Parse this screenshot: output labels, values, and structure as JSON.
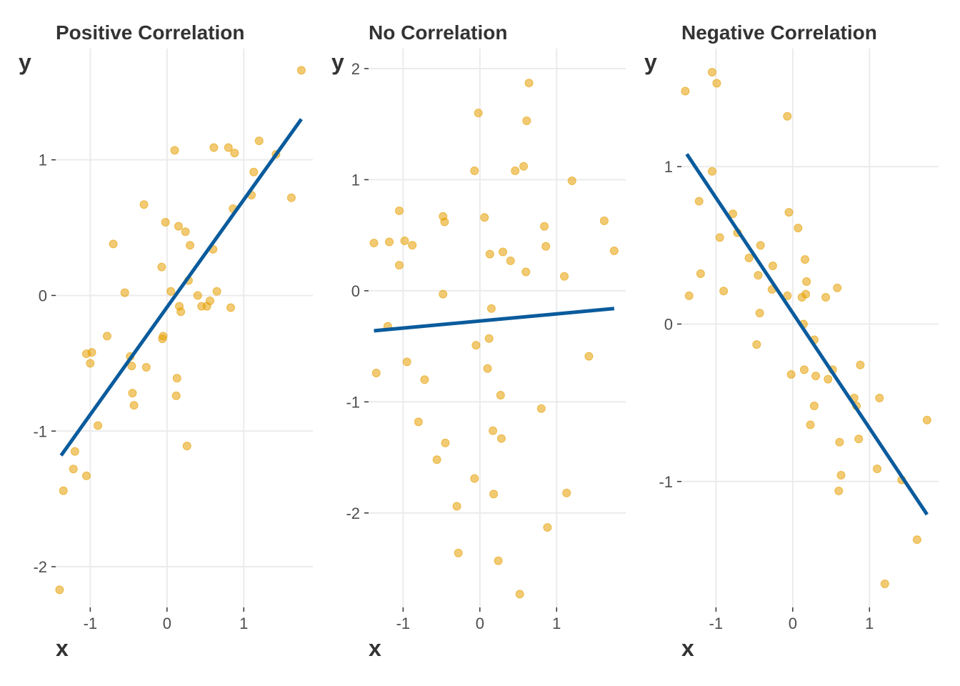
{
  "chart_data": [
    {
      "type": "scatter",
      "title": "Positive Correlation",
      "xlabel": "x",
      "ylabel": "y",
      "xlim": [
        -1.45,
        1.9
      ],
      "ylim": [
        -2.3,
        1.82
      ],
      "x_ticks": [
        -1,
        0,
        1
      ],
      "x_tick_labels": [
        "-1",
        "0",
        "1"
      ],
      "y_ticks": [
        -2,
        -1,
        0,
        1
      ],
      "y_tick_labels": [
        "-2",
        "-1",
        "0",
        "1"
      ],
      "grid": true,
      "point_color": "#E69F00",
      "line_color": "#0a5b9c",
      "trend": {
        "x": [
          -1.38,
          1.75
        ],
        "y": [
          -1.18,
          1.3
        ]
      },
      "points": [
        [
          -1.35,
          -1.44
        ],
        [
          -1.4,
          -2.17
        ],
        [
          -1.2,
          -1.15
        ],
        [
          -1.22,
          -1.28
        ],
        [
          -1.05,
          -1.33
        ],
        [
          -1.05,
          -0.43
        ],
        [
          -0.98,
          -0.42
        ],
        [
          -1.0,
          -0.5
        ],
        [
          -0.9,
          -0.96
        ],
        [
          -0.78,
          -0.3
        ],
        [
          -0.7,
          0.38
        ],
        [
          -0.55,
          0.02
        ],
        [
          -0.48,
          -0.45
        ],
        [
          -0.46,
          -0.52
        ],
        [
          -0.45,
          -0.72
        ],
        [
          -0.43,
          -0.81
        ],
        [
          -0.3,
          0.67
        ],
        [
          -0.27,
          -0.53
        ],
        [
          -0.07,
          0.21
        ],
        [
          -0.06,
          -0.32
        ],
        [
          -0.05,
          -0.3
        ],
        [
          -0.02,
          0.54
        ],
        [
          0.05,
          0.03
        ],
        [
          0.1,
          1.07
        ],
        [
          0.12,
          -0.74
        ],
        [
          0.13,
          -0.61
        ],
        [
          0.15,
          0.51
        ],
        [
          0.16,
          -0.08
        ],
        [
          0.18,
          -0.12
        ],
        [
          0.24,
          0.47
        ],
        [
          0.26,
          -1.11
        ],
        [
          0.28,
          0.11
        ],
        [
          0.3,
          0.37
        ],
        [
          0.4,
          0.0
        ],
        [
          0.45,
          -0.08
        ],
        [
          0.52,
          -0.08
        ],
        [
          0.56,
          -0.04
        ],
        [
          0.6,
          0.34
        ],
        [
          0.61,
          1.09
        ],
        [
          0.65,
          0.03
        ],
        [
          0.8,
          1.09
        ],
        [
          0.83,
          -0.09
        ],
        [
          0.86,
          0.64
        ],
        [
          0.88,
          1.05
        ],
        [
          1.1,
          0.74
        ],
        [
          1.13,
          0.91
        ],
        [
          1.2,
          1.14
        ],
        [
          1.42,
          1.04
        ],
        [
          1.62,
          0.72
        ],
        [
          1.75,
          1.66
        ]
      ]
    },
    {
      "type": "scatter",
      "title": "No Correlation",
      "xlabel": "x",
      "ylabel": "y",
      "xlim": [
        -1.45,
        1.9
      ],
      "ylim": [
        -2.85,
        2.18
      ],
      "x_ticks": [
        -1,
        0,
        1
      ],
      "x_tick_labels": [
        "-1",
        "0",
        "1"
      ],
      "y_ticks": [
        -2,
        -1,
        0,
        1,
        2
      ],
      "y_tick_labels": [
        "-2",
        "-1",
        "0",
        "1",
        "2"
      ],
      "grid": true,
      "point_color": "#E69F00",
      "line_color": "#0a5b9c",
      "trend": {
        "x": [
          -1.38,
          1.75
        ],
        "y": [
          -0.36,
          -0.16
        ]
      },
      "points": [
        [
          -1.38,
          0.43
        ],
        [
          -1.35,
          -0.74
        ],
        [
          -1.2,
          -0.32
        ],
        [
          -1.18,
          0.44
        ],
        [
          -1.05,
          0.72
        ],
        [
          -1.05,
          0.23
        ],
        [
          -0.98,
          0.45
        ],
        [
          -0.95,
          -0.64
        ],
        [
          -0.88,
          0.41
        ],
        [
          -0.8,
          -1.18
        ],
        [
          -0.72,
          -0.8
        ],
        [
          -0.56,
          -1.52
        ],
        [
          -0.48,
          0.67
        ],
        [
          -0.48,
          -0.03
        ],
        [
          -0.46,
          0.62
        ],
        [
          -0.45,
          -1.37
        ],
        [
          -0.3,
          -1.94
        ],
        [
          -0.28,
          -2.36
        ],
        [
          -0.07,
          1.08
        ],
        [
          -0.07,
          -1.69
        ],
        [
          -0.05,
          -0.49
        ],
        [
          -0.02,
          1.6
        ],
        [
          0.06,
          0.66
        ],
        [
          0.1,
          -0.7
        ],
        [
          0.12,
          -0.43
        ],
        [
          0.13,
          0.33
        ],
        [
          0.15,
          -0.16
        ],
        [
          0.17,
          -1.26
        ],
        [
          0.18,
          -1.83
        ],
        [
          0.24,
          -2.43
        ],
        [
          0.27,
          -0.94
        ],
        [
          0.28,
          -1.33
        ],
        [
          0.3,
          0.35
        ],
        [
          0.4,
          0.27
        ],
        [
          0.46,
          1.08
        ],
        [
          0.52,
          -2.73
        ],
        [
          0.57,
          1.12
        ],
        [
          0.6,
          0.17
        ],
        [
          0.61,
          1.53
        ],
        [
          0.64,
          1.87
        ],
        [
          0.8,
          -1.06
        ],
        [
          0.84,
          0.58
        ],
        [
          0.86,
          0.4
        ],
        [
          0.88,
          -2.13
        ],
        [
          1.1,
          0.13
        ],
        [
          1.13,
          -1.82
        ],
        [
          1.2,
          0.99
        ],
        [
          1.42,
          -0.59
        ],
        [
          1.62,
          0.63
        ],
        [
          1.75,
          0.36
        ]
      ]
    },
    {
      "type": "scatter",
      "title": "Negative Correlation",
      "xlabel": "x",
      "ylabel": "y",
      "xlim": [
        -1.45,
        1.9
      ],
      "ylim": [
        -1.8,
        1.75
      ],
      "x_ticks": [
        -1,
        0,
        1
      ],
      "x_tick_labels": [
        "-1",
        "0",
        "1"
      ],
      "y_ticks": [
        -1,
        0,
        1
      ],
      "y_tick_labels": [
        "-1",
        "0",
        "1"
      ],
      "grid": true,
      "point_color": "#E69F00",
      "line_color": "#0a5b9c",
      "trend": {
        "x": [
          -1.38,
          1.75
        ],
        "y": [
          1.08,
          -1.21
        ]
      },
      "points": [
        [
          -1.4,
          1.48
        ],
        [
          -1.35,
          0.18
        ],
        [
          -1.22,
          0.78
        ],
        [
          -1.2,
          0.32
        ],
        [
          -1.05,
          1.6
        ],
        [
          -1.05,
          0.97
        ],
        [
          -0.99,
          1.53
        ],
        [
          -0.95,
          0.55
        ],
        [
          -0.9,
          0.21
        ],
        [
          -0.78,
          0.7
        ],
        [
          -0.72,
          0.58
        ],
        [
          -0.57,
          0.42
        ],
        [
          -0.47,
          -0.13
        ],
        [
          -0.45,
          0.31
        ],
        [
          -0.43,
          0.07
        ],
        [
          -0.42,
          0.5
        ],
        [
          -0.27,
          0.22
        ],
        [
          -0.26,
          0.37
        ],
        [
          -0.07,
          1.32
        ],
        [
          -0.07,
          0.18
        ],
        [
          -0.05,
          0.71
        ],
        [
          -0.02,
          -0.32
        ],
        [
          0.07,
          0.61
        ],
        [
          0.12,
          0.17
        ],
        [
          0.14,
          0.0
        ],
        [
          0.15,
          -0.29
        ],
        [
          0.16,
          0.41
        ],
        [
          0.17,
          0.19
        ],
        [
          0.18,
          0.27
        ],
        [
          0.28,
          -0.1
        ],
        [
          0.28,
          -0.52
        ],
        [
          0.3,
          -0.33
        ],
        [
          0.43,
          0.17
        ],
        [
          0.46,
          -0.35
        ],
        [
          0.52,
          -0.29
        ],
        [
          0.58,
          0.23
        ],
        [
          0.6,
          -1.06
        ],
        [
          0.61,
          -0.75
        ],
        [
          0.63,
          -0.96
        ],
        [
          0.8,
          -0.47
        ],
        [
          0.83,
          -0.52
        ],
        [
          0.86,
          -0.73
        ],
        [
          0.88,
          -0.26
        ],
        [
          1.1,
          -0.92
        ],
        [
          1.13,
          -0.47
        ],
        [
          1.2,
          -1.65
        ],
        [
          1.42,
          -0.99
        ],
        [
          1.62,
          -1.37
        ],
        [
          1.75,
          -0.61
        ],
        [
          0.23,
          -0.64
        ]
      ]
    }
  ]
}
